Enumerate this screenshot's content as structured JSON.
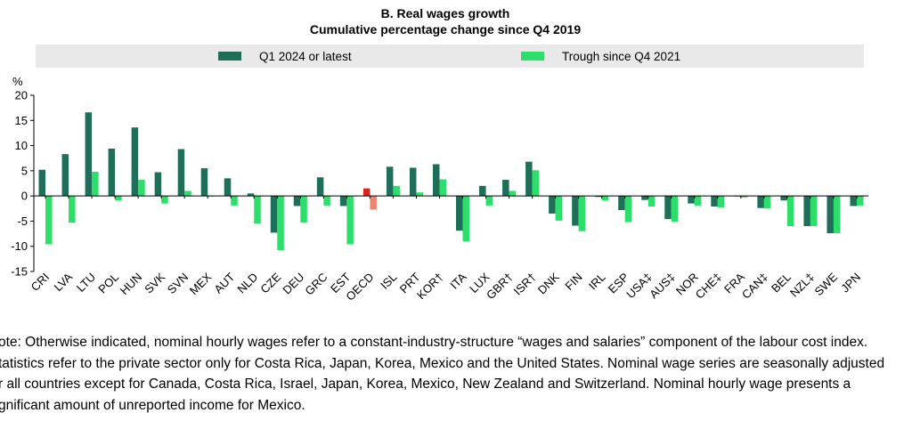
{
  "colors": {
    "q1": "#1e6e5a",
    "trough": "#2ede6a",
    "oecd_q1": "#d9231e",
    "oecd_trough": "#f0836e"
  },
  "legend": {
    "q1_label": "Q1 2024 or latest",
    "trough_label": "Trough since Q4 2021"
  },
  "chart_data": {
    "type": "bar",
    "title": "B. Real wages growth",
    "subtitle": "Cumulative percentage change since Q4 2019",
    "ylabel": "%",
    "ylim": [
      -15,
      20
    ],
    "yticks": [
      20,
      15,
      10,
      5,
      0,
      -5,
      -10,
      -15
    ],
    "grid": false,
    "legend_position": "top",
    "categories": [
      "CRI",
      "LVA",
      "LTU",
      "POL",
      "HUN",
      "SVK",
      "SVN",
      "MEX",
      "AUT",
      "NLD",
      "CZE",
      "DEU",
      "GRC",
      "EST",
      "OECD",
      "ISL",
      "PRT",
      "KOR†",
      "ITA",
      "LUX",
      "GBR†",
      "ISR†",
      "DNK",
      "FIN",
      "IRL",
      "ESP",
      "USA‡",
      "AUS‡",
      "NOR",
      "CHE‡",
      "FRA",
      "CAN‡",
      "BEL",
      "NZL‡",
      "SWE",
      "JPN"
    ],
    "highlight_category": "OECD",
    "series": [
      {
        "name": "Q1 2024 or latest",
        "values": [
          5.2,
          8.3,
          16.6,
          9.4,
          13.6,
          4.7,
          9.3,
          5.5,
          3.5,
          0.5,
          -7.3,
          -2.0,
          3.7,
          -2.0,
          1.5,
          5.8,
          5.6,
          6.3,
          -6.9,
          2.0,
          3.2,
          6.8,
          -3.5,
          -5.9,
          -0.2,
          -2.8,
          -0.8,
          -4.6,
          -1.5,
          -2.1,
          -0.1,
          -2.4,
          -0.9,
          -6.0,
          -7.4,
          -2.0
        ]
      },
      {
        "name": "Trough since Q4 2021",
        "values": [
          -9.6,
          -5.3,
          4.8,
          -0.9,
          3.2,
          -1.5,
          1.0,
          -0.1,
          -1.9,
          -5.5,
          -10.8,
          -5.3,
          -1.9,
          -9.6,
          -2.7,
          2.0,
          0.7,
          3.3,
          -9.0,
          -1.9,
          1.0,
          5.1,
          -4.9,
          -7.0,
          -0.9,
          -5.2,
          -2.1,
          -5.1,
          -1.9,
          -2.3,
          -0.3,
          -2.5,
          -6.0,
          -6.0,
          -7.4,
          -1.9
        ]
      }
    ]
  },
  "note": {
    "lines": [
      "ote: Otherwise indicated, nominal hourly wages refer to a constant-industry-structure “wages and salaries” component of the labour cost index.",
      "tatistics refer to the private sector only for Costa Rica, Japan, Korea, Mexico and the United States. Nominal wage series are seasonally adjusted",
      "r all countries except for Canada, Costa Rica, Israel, Japan, Korea, Mexico, New Zealand and Switzerland. Nominal hourly wage presents a",
      "gnificant amount of unreported income for Mexico."
    ]
  }
}
